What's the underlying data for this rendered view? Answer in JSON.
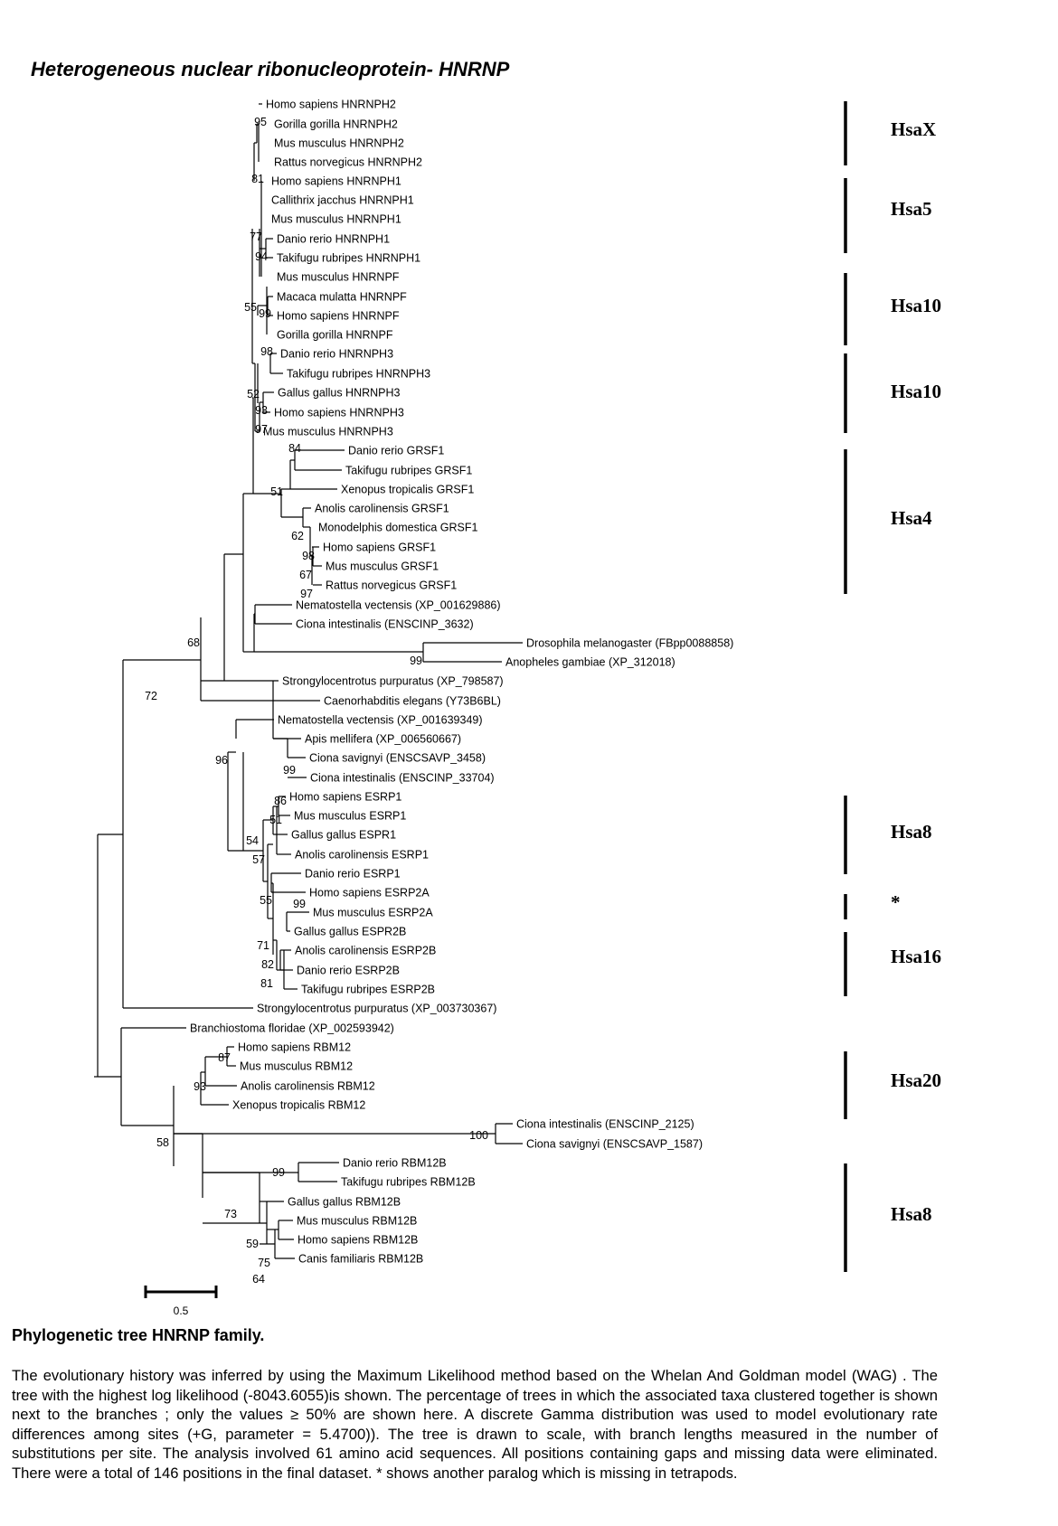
{
  "title": "Heterogeneous nuclear ribonucleoprotein- HNRNP",
  "caption": {
    "title": "Phylogenetic tree HNRNP family.",
    "text": "The evolutionary history was inferred by using the Maximum Likelihood method based on the Whelan And Goldman model (WAG) . The tree with the highest log likelihood (-8043.6055)is shown. The percentage of trees in which the associated taxa clustered together is shown next to the branches ; only the values ≥ 50% are shown here. A discrete Gamma distribution was used to model evolutionary rate differences among sites (+G, parameter = 5.4700)). The tree is drawn to scale, with branch lengths measured in the number of substitutions per site. The analysis involved 61 amino acid sequences. All positions containing gaps and missing data were eliminated. There were a total of 146  positions in the final dataset. * shows another paralog which is missing in tetrapods."
  },
  "scale_bar": {
    "label": "0.5"
  },
  "taxa": [
    "Homo sapiens HNRNPH2",
    "Gorilla gorilla HNRNPH2",
    "Mus musculus HNRNPH2",
    "Rattus norvegicus HNRNPH2",
    "Homo sapiens HNRNPH1",
    "Callithrix jacchus HNRNPH1",
    "Mus musculus HNRNPH1",
    "Danio rerio HNRNPH1",
    "Takifugu rubripes HNRNPH1",
    "Mus musculus HNRNPF",
    "Macaca mulatta HNRNPF",
    "Homo sapiens HNRNPF",
    "Gorilla gorilla HNRNPF",
    "Danio rerio HNRNPH3",
    "Takifugu rubripes HNRNPH3",
    "Gallus gallus HNRNPH3",
    "Homo sapiens HNRNPH3",
    "Mus musculus HNRNPH3",
    "Danio rerio GRSF1",
    "Takifugu rubripes GRSF1",
    "Xenopus tropicalis GRSF1",
    "Anolis carolinensis GRSF1",
    "Monodelphis domestica GRSF1",
    "Homo sapiens GRSF1",
    "Mus musculus GRSF1",
    "Rattus norvegicus GRSF1",
    "Nematostella vectensis (XP_001629886)",
    "Ciona intestinalis (ENSCINP_3632)",
    "Drosophila melanogaster (FBpp0088858)",
    "Anopheles gambiae (XP_312018)",
    "Strongylocentrotus purpuratus (XP_798587)",
    "Caenorhabditis elegans (Y73B6BL)",
    "Nematostella vectensis (XP_001639349)",
    "Apis mellifera (XP_006560667)",
    "Ciona savignyi (ENSCSAVP_3458)",
    "Ciona intestinalis (ENSCINP_33704)",
    "Homo sapiens ESRP1",
    "Mus musculus ESRP1",
    "Gallus gallus ESPR1",
    "Anolis carolinensis ESRP1",
    "Danio rerio ESRP1",
    "Homo sapiens ESRP2A",
    "Mus musculus ESRP2A",
    "Gallus gallus ESPR2B",
    "Anolis carolinensis ESRP2B",
    "Danio rerio ESRP2B",
    "Takifugu rubripes ESRP2B",
    "Strongylocentrotus purpuratus (XP_003730367)",
    "Branchiostoma floridae (XP_002593942)",
    "Homo sapiens RBM12",
    "Mus musculus RBM12",
    "Anolis carolinensis RBM12",
    "Xenopus tropicalis RBM12",
    "Ciona intestinalis (ENSCINP_2125)",
    "Ciona savignyi (ENSCSAVP_1587)",
    "Danio rerio RBM12B",
    "Takifugu rubripes RBM12B",
    "Gallus gallus RBM12B",
    "Mus musculus RBM12B",
    "Homo sapiens RBM12B",
    "Canis familiaris RBM12B"
  ],
  "bootstrap_values": [
    "95",
    "81",
    "77",
    "94",
    "55",
    "99",
    "98",
    "52",
    "93",
    "97",
    "84",
    "51",
    "62",
    "98",
    "67",
    "97",
    "68",
    "99",
    "72",
    "96",
    "99",
    "86",
    "51",
    "54",
    "57",
    "55",
    "99",
    "71",
    "82",
    "81",
    "87",
    "93",
    "58",
    "100",
    "99",
    "73",
    "59",
    "75",
    "64"
  ],
  "chromosome_groups": [
    "HsaX",
    "Hsa5",
    "Hsa10",
    "Hsa10",
    "Hsa4",
    "Hsa8",
    "*",
    "Hsa16",
    "Hsa20",
    "Hsa8"
  ]
}
